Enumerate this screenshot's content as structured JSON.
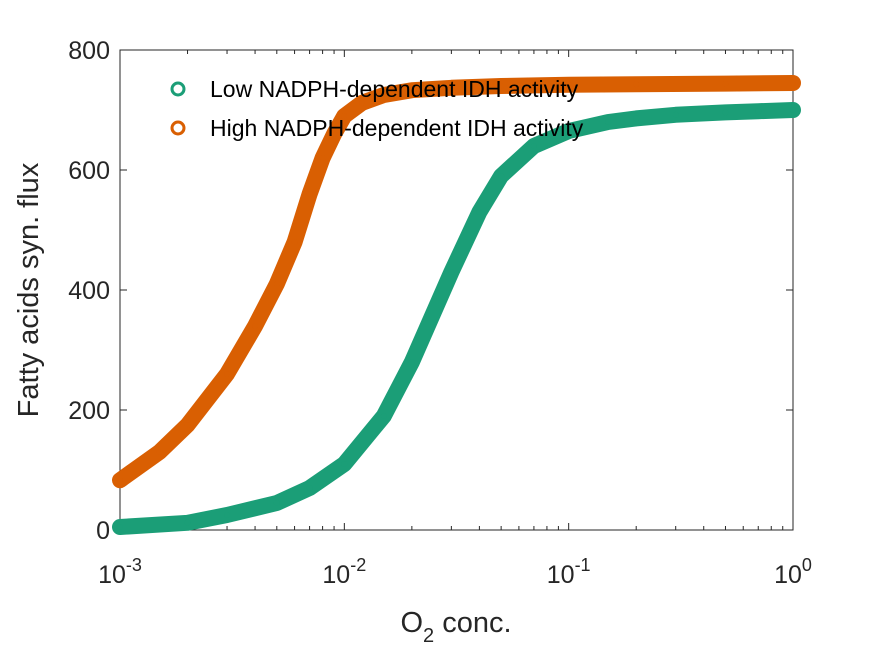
{
  "chart_data": {
    "type": "line",
    "title": "",
    "xlabel": {
      "base": "O",
      "sub": "2",
      "rest": " conc."
    },
    "ylabel": "Fatty acids syn. flux",
    "xscale": "log",
    "xlim": [
      0.001,
      1
    ],
    "ylim": [
      0,
      800
    ],
    "x_ticks": [
      {
        "base": "10",
        "exp": "-3",
        "value": 0.001
      },
      {
        "base": "10",
        "exp": "-2",
        "value": 0.01
      },
      {
        "base": "10",
        "exp": "-1",
        "value": 0.1
      },
      {
        "base": "10",
        "exp": "0",
        "value": 1
      }
    ],
    "y_ticks": [
      "0",
      "200",
      "400",
      "600",
      "800"
    ],
    "grid": false,
    "legend_position": "top-left",
    "marker": "circle",
    "series": [
      {
        "name": "Low NADPH-dependent IDH activity",
        "color": "#1b9e77",
        "x": [
          0.001,
          0.002,
          0.003,
          0.005,
          0.007,
          0.01,
          0.015,
          0.02,
          0.03,
          0.04,
          0.05,
          0.07,
          0.1,
          0.15,
          0.2,
          0.3,
          0.5,
          0.7,
          1.0
        ],
        "y": [
          5,
          12,
          25,
          45,
          70,
          110,
          190,
          280,
          430,
          530,
          590,
          640,
          665,
          680,
          686,
          692,
          696,
          698,
          700
        ]
      },
      {
        "name": "High NADPH-dependent IDH activity",
        "color": "#d95f02",
        "x": [
          0.001,
          0.0015,
          0.002,
          0.003,
          0.004,
          0.005,
          0.006,
          0.007,
          0.008,
          0.009,
          0.01,
          0.012,
          0.015,
          0.02,
          0.03,
          0.05,
          0.1,
          0.2,
          0.5,
          1.0
        ],
        "y": [
          83,
          130,
          175,
          260,
          340,
          410,
          480,
          560,
          620,
          660,
          690,
          712,
          725,
          733,
          737,
          740,
          742,
          743,
          744,
          745
        ]
      }
    ]
  }
}
